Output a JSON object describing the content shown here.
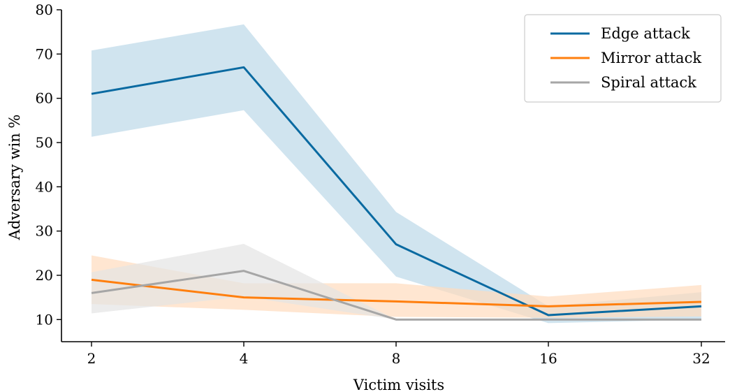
{
  "chart_data": {
    "type": "line",
    "xlabel": "Victim visits",
    "ylabel": "Adversary win %",
    "x": [
      2,
      4,
      8,
      16,
      32
    ],
    "x_scale": "log2",
    "ylim": [
      5,
      80
    ],
    "yticks": [
      10,
      20,
      30,
      40,
      50,
      60,
      70,
      80
    ],
    "grid": false,
    "legend_position": "top-right",
    "series": [
      {
        "name": "Edge attack",
        "color": "#0a6aa1",
        "band_color": "#bcd9e8",
        "values": [
          61,
          67,
          27,
          11,
          13
        ],
        "lower": [
          51.3,
          57.3,
          19.7,
          9.2,
          10.0
        ],
        "upper": [
          70.8,
          76.7,
          34.3,
          13.0,
          16.2
        ]
      },
      {
        "name": "Mirror attack",
        "color": "#ff7f0e",
        "band_color": "#ffdcbd",
        "values": [
          19,
          15,
          14.1,
          13,
          14
        ],
        "lower": [
          13.5,
          12.2,
          10.6,
          10.4,
          10.7
        ],
        "upper": [
          24.5,
          18.2,
          18.2,
          15.2,
          17.8
        ]
      },
      {
        "name": "Spiral attack",
        "color": "#a6a6a6",
        "band_color": "#e4e4e4",
        "values": [
          16,
          21,
          10,
          10,
          10
        ],
        "lower": [
          11.4,
          15.2,
          10,
          10,
          10
        ],
        "upper": [
          20.7,
          27.1,
          10,
          10,
          10
        ]
      }
    ],
    "xtick_labels": [
      "2",
      "4",
      "8",
      "16",
      "32"
    ],
    "ytick_labels": [
      "10",
      "20",
      "30",
      "40",
      "50",
      "60",
      "70",
      "80"
    ]
  }
}
